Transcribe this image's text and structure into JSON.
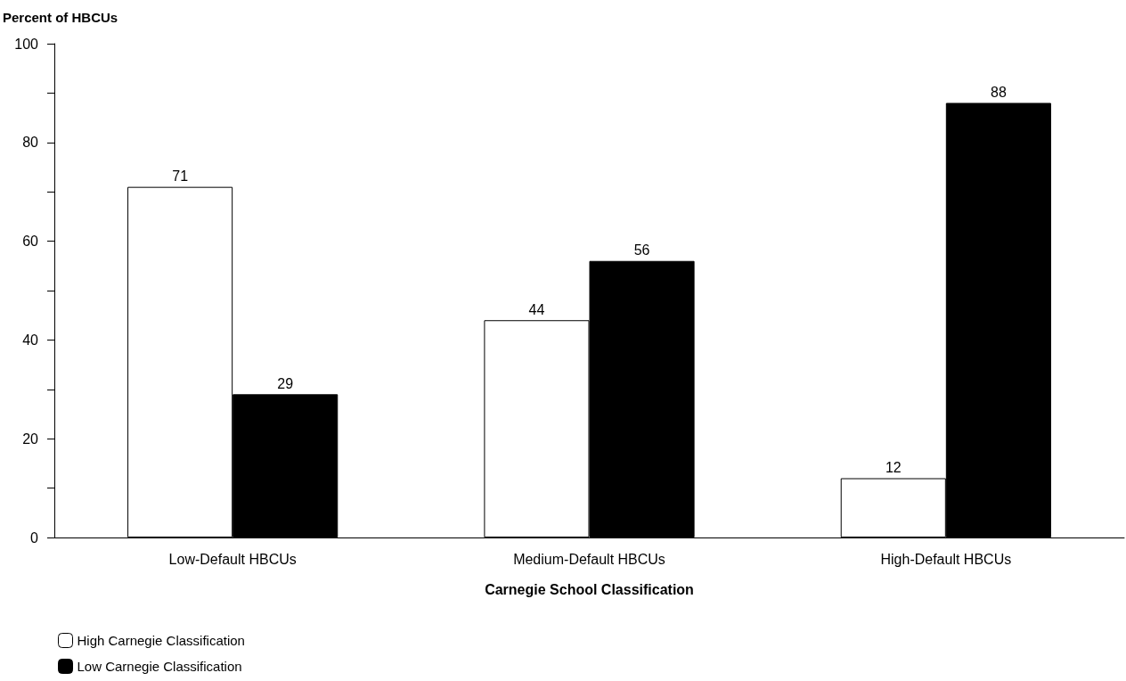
{
  "chart_data": {
    "type": "bar",
    "ylabel": "Percent of HBCUs",
    "xlabel": "Carnegie School Classification",
    "categories": [
      "Low-Default HBCUs",
      "Medium-Default HBCUs",
      "High-Default HBCUs"
    ],
    "series": [
      {
        "name": "High Carnegie Classification",
        "color": "#ffffff",
        "values": [
          71,
          44,
          12
        ]
      },
      {
        "name": "Low Carnegie Classification",
        "color": "#000000",
        "values": [
          29,
          56,
          88
        ]
      }
    ],
    "ylim": [
      0,
      100
    ],
    "yticks": [
      0,
      {
        "value": 10,
        "label": null
      },
      20,
      {
        "value": 30,
        "label": null
      },
      40,
      {
        "value": 50,
        "label": null
      },
      60,
      {
        "value": 70,
        "label": null
      },
      80,
      {
        "value": 90,
        "label": null
      },
      100
    ],
    "grid": false,
    "legend": "bottom left",
    "data_labels": true
  }
}
